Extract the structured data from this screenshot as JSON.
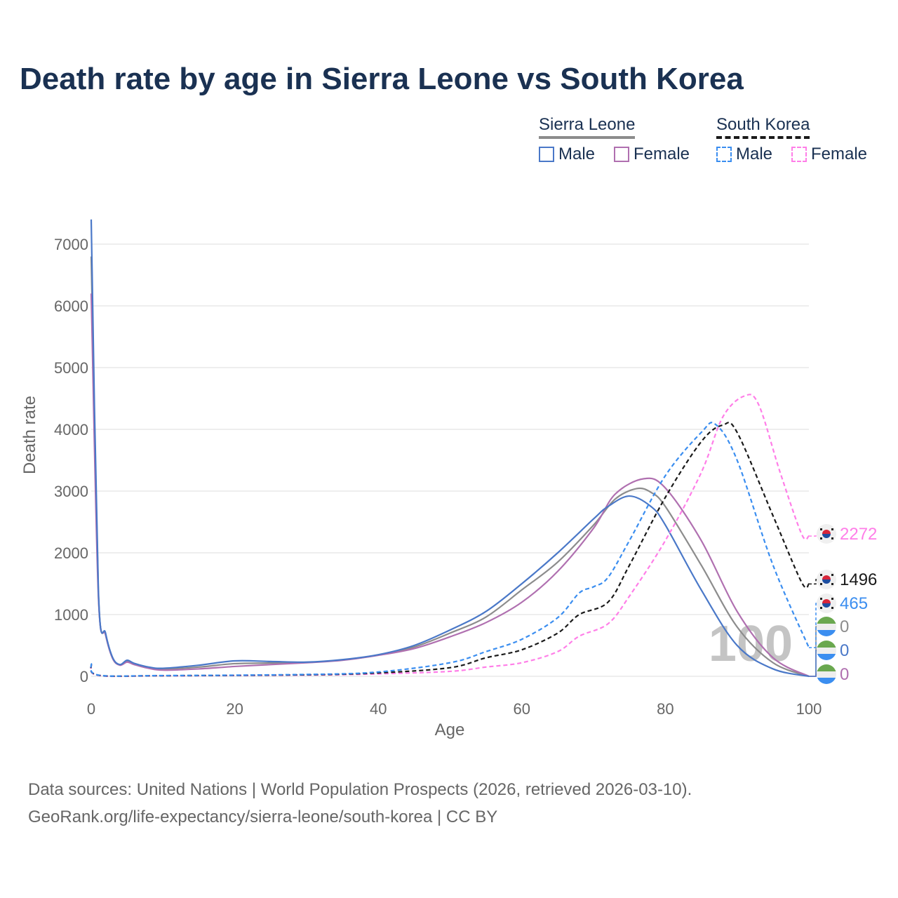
{
  "title": "Death rate by age in Sierra Leone vs South Korea",
  "legend": {
    "groups": [
      {
        "name": "Sierra Leone",
        "items": [
          "Male",
          "Female"
        ]
      },
      {
        "name": "South Korea",
        "items": [
          "Male",
          "Female"
        ]
      }
    ]
  },
  "source": {
    "line1": "Data sources: United Nations | World Population Prospects (2026, retrieved 2026-03-10).",
    "line2": "GeoRank.org/life-expectancy/sierra-leone/south-korea | CC BY"
  },
  "colors": {
    "sl_male": "#4a78c8",
    "sl_total": "#8c8c8c",
    "sl_female": "#b070b0",
    "sk_male": "#3b8ef0",
    "sk_total": "#1a1a1a",
    "sk_female": "#ff7ee8"
  },
  "chart_data": {
    "type": "line",
    "xlabel": "Age",
    "ylabel": "Death rate",
    "xlim": [
      0,
      100
    ],
    "ylim": [
      0,
      7400
    ],
    "xticks": [
      "0",
      "20",
      "40",
      "60",
      "80",
      "100"
    ],
    "yticks": [
      "0",
      "1000",
      "2000",
      "3000",
      "4000",
      "5000",
      "6000",
      "7000"
    ],
    "watermark": "100",
    "series": [
      {
        "name": "Sierra Leone Total",
        "key": "sl_total",
        "dash": false,
        "end_label": "0",
        "flag": "sl",
        "points": [
          [
            0,
            6800
          ],
          [
            1,
            1350
          ],
          [
            2,
            680
          ],
          [
            3,
            290
          ],
          [
            4,
            185
          ],
          [
            5,
            245
          ],
          [
            6,
            200
          ],
          [
            8,
            140
          ],
          [
            10,
            115
          ],
          [
            15,
            150
          ],
          [
            20,
            205
          ],
          [
            25,
            215
          ],
          [
            30,
            225
          ],
          [
            35,
            265
          ],
          [
            40,
            345
          ],
          [
            45,
            475
          ],
          [
            50,
            700
          ],
          [
            55,
            960
          ],
          [
            60,
            1400
          ],
          [
            65,
            1850
          ],
          [
            70,
            2450
          ],
          [
            73,
            2870
          ],
          [
            76,
            3040
          ],
          [
            78,
            2980
          ],
          [
            80,
            2750
          ],
          [
            85,
            1800
          ],
          [
            90,
            800
          ],
          [
            95,
            220
          ],
          [
            100,
            0
          ]
        ]
      },
      {
        "name": "Sierra Leone Female",
        "key": "sl_female",
        "dash": false,
        "end_label": "0",
        "flag": "sl",
        "points": [
          [
            0,
            6200
          ],
          [
            1,
            1300
          ],
          [
            2,
            670
          ],
          [
            3,
            285
          ],
          [
            4,
            180
          ],
          [
            5,
            230
          ],
          [
            6,
            190
          ],
          [
            8,
            130
          ],
          [
            10,
            100
          ],
          [
            15,
            120
          ],
          [
            20,
            160
          ],
          [
            25,
            190
          ],
          [
            30,
            220
          ],
          [
            35,
            260
          ],
          [
            40,
            340
          ],
          [
            45,
            450
          ],
          [
            50,
            640
          ],
          [
            55,
            870
          ],
          [
            60,
            1200
          ],
          [
            65,
            1700
          ],
          [
            70,
            2400
          ],
          [
            73,
            2950
          ],
          [
            77,
            3200
          ],
          [
            80,
            3050
          ],
          [
            85,
            2200
          ],
          [
            90,
            1050
          ],
          [
            95,
            300
          ],
          [
            100,
            0
          ]
        ]
      },
      {
        "name": "Sierra Leone Male",
        "key": "sl_male",
        "dash": false,
        "end_label": "0",
        "flag": "sl",
        "points": [
          [
            0,
            7400
          ],
          [
            1,
            1400
          ],
          [
            2,
            700
          ],
          [
            3,
            300
          ],
          [
            4,
            190
          ],
          [
            5,
            260
          ],
          [
            6,
            210
          ],
          [
            8,
            150
          ],
          [
            10,
            130
          ],
          [
            15,
            180
          ],
          [
            20,
            250
          ],
          [
            25,
            240
          ],
          [
            30,
            230
          ],
          [
            35,
            270
          ],
          [
            40,
            350
          ],
          [
            45,
            500
          ],
          [
            50,
            750
          ],
          [
            55,
            1050
          ],
          [
            60,
            1500
          ],
          [
            65,
            2000
          ],
          [
            70,
            2550
          ],
          [
            72,
            2750
          ],
          [
            75,
            2920
          ],
          [
            78,
            2750
          ],
          [
            80,
            2450
          ],
          [
            85,
            1400
          ],
          [
            90,
            500
          ],
          [
            95,
            120
          ],
          [
            100,
            0
          ]
        ]
      },
      {
        "name": "South Korea Female",
        "key": "sk_female",
        "dash": true,
        "end_label": "2272",
        "flag": "kr",
        "points": [
          [
            0,
            190
          ],
          [
            1,
            15
          ],
          [
            10,
            8
          ],
          [
            30,
            20
          ],
          [
            40,
            40
          ],
          [
            50,
            80
          ],
          [
            55,
            150
          ],
          [
            60,
            220
          ],
          [
            65,
            400
          ],
          [
            68,
            650
          ],
          [
            72,
            850
          ],
          [
            75,
            1300
          ],
          [
            80,
            2200
          ],
          [
            85,
            3300
          ],
          [
            88,
            4200
          ],
          [
            91,
            4540
          ],
          [
            93,
            4400
          ],
          [
            96,
            3300
          ],
          [
            99,
            2300
          ],
          [
            100,
            2272
          ]
        ]
      },
      {
        "name": "South Korea Total",
        "key": "sk_total",
        "dash": true,
        "end_label": "1496",
        "flag": "kr",
        "points": [
          [
            0,
            200
          ],
          [
            1,
            18
          ],
          [
            10,
            10
          ],
          [
            30,
            25
          ],
          [
            40,
            55
          ],
          [
            50,
            140
          ],
          [
            55,
            300
          ],
          [
            60,
            430
          ],
          [
            65,
            700
          ],
          [
            68,
            1000
          ],
          [
            72,
            1200
          ],
          [
            75,
            1800
          ],
          [
            80,
            2900
          ],
          [
            85,
            3800
          ],
          [
            88,
            4070
          ],
          [
            90,
            3950
          ],
          [
            95,
            2600
          ],
          [
            99,
            1520
          ],
          [
            100,
            1496
          ]
        ]
      },
      {
        "name": "South Korea Male",
        "key": "sk_male",
        "dash": true,
        "end_label": "465",
        "flag": "kr",
        "points": [
          [
            0,
            210
          ],
          [
            1,
            20
          ],
          [
            10,
            12
          ],
          [
            30,
            30
          ],
          [
            40,
            70
          ],
          [
            50,
            220
          ],
          [
            55,
            400
          ],
          [
            60,
            600
          ],
          [
            65,
            950
          ],
          [
            68,
            1350
          ],
          [
            70,
            1450
          ],
          [
            72,
            1600
          ],
          [
            75,
            2200
          ],
          [
            80,
            3250
          ],
          [
            85,
            3950
          ],
          [
            87,
            4080
          ],
          [
            90,
            3500
          ],
          [
            95,
            1800
          ],
          [
            100,
            465
          ]
        ]
      }
    ]
  }
}
